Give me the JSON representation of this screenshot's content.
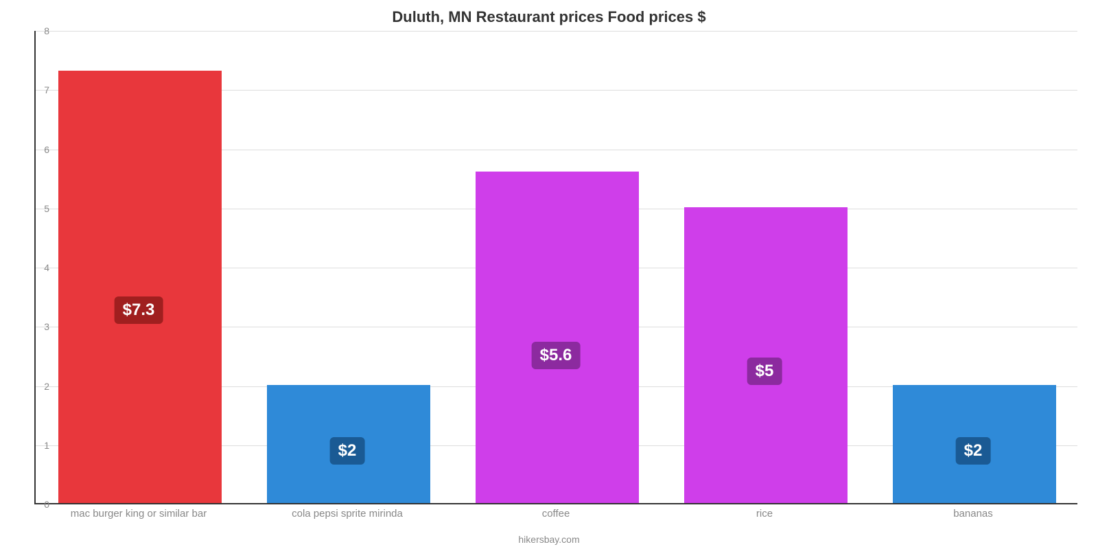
{
  "chart": {
    "type": "bar",
    "title": "Duluth, MN Restaurant prices Food prices $",
    "title_fontsize": 22,
    "title_color": "#333333",
    "attribution": "hikersbay.com",
    "background_color": "#ffffff",
    "grid_color": "#dddddd",
    "axis_color": "#333333",
    "tick_color": "#888888",
    "xlabel_color": "#888888",
    "xlabel_fontsize": 15,
    "ytick_fontsize": 14,
    "ylim_min": 0,
    "ylim_max": 8,
    "ytick_step": 1,
    "bar_width_ratio": 0.78,
    "yticks": [
      "0",
      "1",
      "2",
      "3",
      "4",
      "5",
      "6",
      "7",
      "8"
    ],
    "categories": [
      "mac burger king or similar bar",
      "cola pepsi sprite mirinda",
      "coffee",
      "rice",
      "bananas"
    ],
    "values": [
      7.3,
      2.0,
      5.6,
      5.0,
      2.0
    ],
    "value_labels": [
      "$7.3",
      "$2",
      "$5.6",
      "$5",
      "$2"
    ],
    "bar_colors": [
      "#e8373c",
      "#2f8ad8",
      "#cf3eea",
      "#cf3eea",
      "#2f8ad8"
    ],
    "badge_colors": [
      "#a01f1f",
      "#1a5a94",
      "#8c2a9f",
      "#8c2a9f",
      "#1a5a94"
    ],
    "badge_fontsize": 24,
    "badge_text_color": "#ffffff"
  }
}
